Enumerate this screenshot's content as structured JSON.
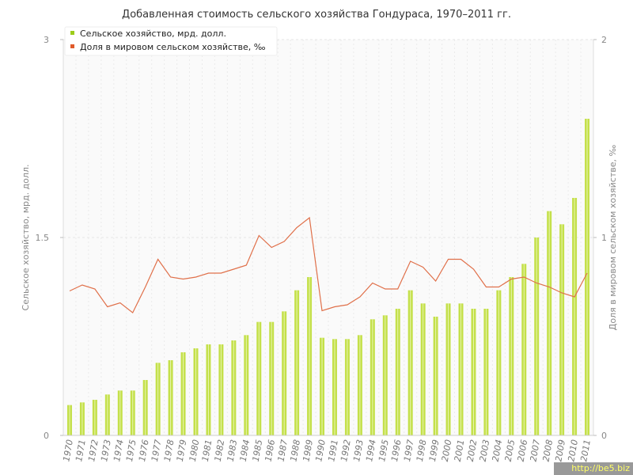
{
  "chart_data": {
    "type": "bar",
    "title": "Добавленная стоимость сельского хозяйства Гондураса, 1970–2011 гг.",
    "ylabel_left": "Сельское хозяйство, мрд. долл.",
    "ylabel_right": "Доля в мировом сельском хозяйстве, ‰",
    "ylim_left": [
      0,
      3
    ],
    "ylim_right": [
      0,
      2
    ],
    "yticks_left": [
      "0",
      "1.5",
      "3"
    ],
    "yticks_right": [
      "0",
      "1",
      "2"
    ],
    "grid": true,
    "legend_position": "top-left",
    "categories": [
      "1970",
      "1971",
      "1972",
      "1973",
      "1974",
      "1975",
      "1976",
      "1977",
      "1978",
      "1979",
      "1980",
      "1981",
      "1982",
      "1983",
      "1984",
      "1985",
      "1986",
      "1987",
      "1988",
      "1989",
      "1990",
      "1991",
      "1992",
      "1993",
      "1994",
      "1995",
      "1996",
      "1997",
      "1998",
      "1999",
      "2000",
      "2001",
      "2002",
      "2003",
      "2004",
      "2005",
      "2006",
      "2007",
      "2008",
      "2009",
      "2010",
      "2011"
    ],
    "series": [
      {
        "name": "Сельское хозяйство, мрд. долл.",
        "type": "bar",
        "axis": "left",
        "color": "#c4e04a",
        "values": [
          0.23,
          0.25,
          0.27,
          0.31,
          0.34,
          0.34,
          0.42,
          0.55,
          0.57,
          0.63,
          0.66,
          0.69,
          0.69,
          0.72,
          0.76,
          0.86,
          0.86,
          0.94,
          1.1,
          1.2,
          0.74,
          0.73,
          0.73,
          0.76,
          0.88,
          0.91,
          0.96,
          1.1,
          1.0,
          0.9,
          1.0,
          1.0,
          0.96,
          0.96,
          1.1,
          1.2,
          1.3,
          1.5,
          1.7,
          1.6,
          1.8,
          2.4
        ]
      },
      {
        "name": "Доля в мировом сельском хозяйстве, ‰",
        "type": "line",
        "axis": "right",
        "color": "#e0704a",
        "values": [
          0.73,
          0.76,
          0.74,
          0.65,
          0.67,
          0.62,
          0.75,
          0.89,
          0.8,
          0.79,
          0.8,
          0.82,
          0.82,
          0.84,
          0.86,
          1.01,
          0.95,
          0.98,
          1.05,
          1.1,
          0.63,
          0.65,
          0.66,
          0.7,
          0.77,
          0.74,
          0.74,
          0.88,
          0.85,
          0.78,
          0.89,
          0.89,
          0.84,
          0.75,
          0.75,
          0.79,
          0.8,
          0.77,
          0.75,
          0.72,
          0.7,
          0.82
        ]
      }
    ]
  },
  "watermark": "http://be5.biz"
}
